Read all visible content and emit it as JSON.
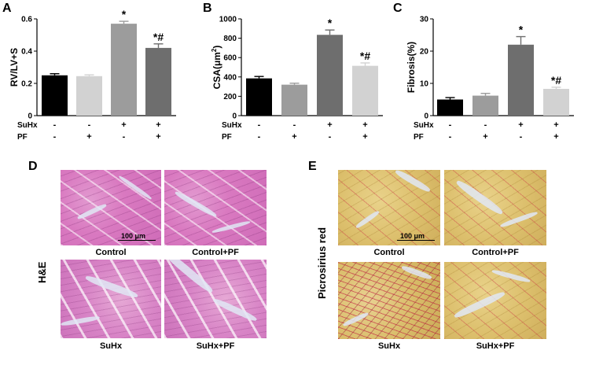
{
  "chart_data": [
    {
      "type": "bar",
      "panel": "A",
      "ylabel": "RV/LV+S",
      "ylim": [
        0,
        0.6
      ],
      "yticks": [
        "0",
        "0.2",
        "0.4",
        "0.6"
      ],
      "categories": [
        "SuHx- PF-",
        "SuHx- PF+",
        "SuHx+ PF-",
        "SuHx+ PF+"
      ],
      "values": [
        0.25,
        0.245,
        0.57,
        0.42
      ],
      "errors": [
        0.01,
        0.008,
        0.015,
        0.025
      ],
      "colors": [
        "#000000",
        "#d2d2d2",
        "#9c9c9c",
        "#6e6e6e"
      ],
      "annotations": [
        "",
        "",
        "*",
        "*#"
      ]
    },
    {
      "type": "bar",
      "panel": "B",
      "ylabel": "CSA(μm²)",
      "ylim": [
        0,
        1000
      ],
      "yticks": [
        "0",
        "200",
        "400",
        "600",
        "800",
        "1000"
      ],
      "categories": [
        "SuHx- PF-",
        "SuHx- PF+",
        "SuHx+ PF-",
        "SuHx+ PF+"
      ],
      "values": [
        385,
        320,
        835,
        515
      ],
      "errors": [
        20,
        15,
        50,
        30
      ],
      "colors": [
        "#000000",
        "#9c9c9c",
        "#6e6e6e",
        "#d2d2d2"
      ],
      "annotations": [
        "",
        "",
        "*",
        "*#"
      ]
    },
    {
      "type": "bar",
      "panel": "C",
      "ylabel": "Fibrosis(%)",
      "ylim": [
        0,
        30
      ],
      "yticks": [
        "0",
        "10",
        "20",
        "30"
      ],
      "categories": [
        "SuHx- PF-",
        "SuHx- PF+",
        "SuHx+ PF-",
        "SuHx+ PF+"
      ],
      "values": [
        5.0,
        6.2,
        22.0,
        8.3
      ],
      "errors": [
        0.6,
        0.7,
        2.5,
        0.5
      ],
      "colors": [
        "#000000",
        "#9c9c9c",
        "#6e6e6e",
        "#d2d2d2"
      ],
      "annotations": [
        "",
        "",
        "*",
        "*#"
      ]
    }
  ],
  "panels": {
    "a": "A",
    "b": "B",
    "c": "C",
    "d": "D",
    "e": "E"
  },
  "group_rows": {
    "suhx_label": "SuHx",
    "pf_label": "PF",
    "suhx_signs": [
      "-",
      "-",
      "+",
      "+"
    ],
    "pf_signs": [
      "-",
      "+",
      "-",
      "+"
    ]
  },
  "histology": {
    "he_label": "H&E",
    "ps_label": "Picrosirius red",
    "scale": "100 μm",
    "captions": [
      "Control",
      "Control+PF",
      "SuHx",
      "SuHx+PF"
    ]
  }
}
